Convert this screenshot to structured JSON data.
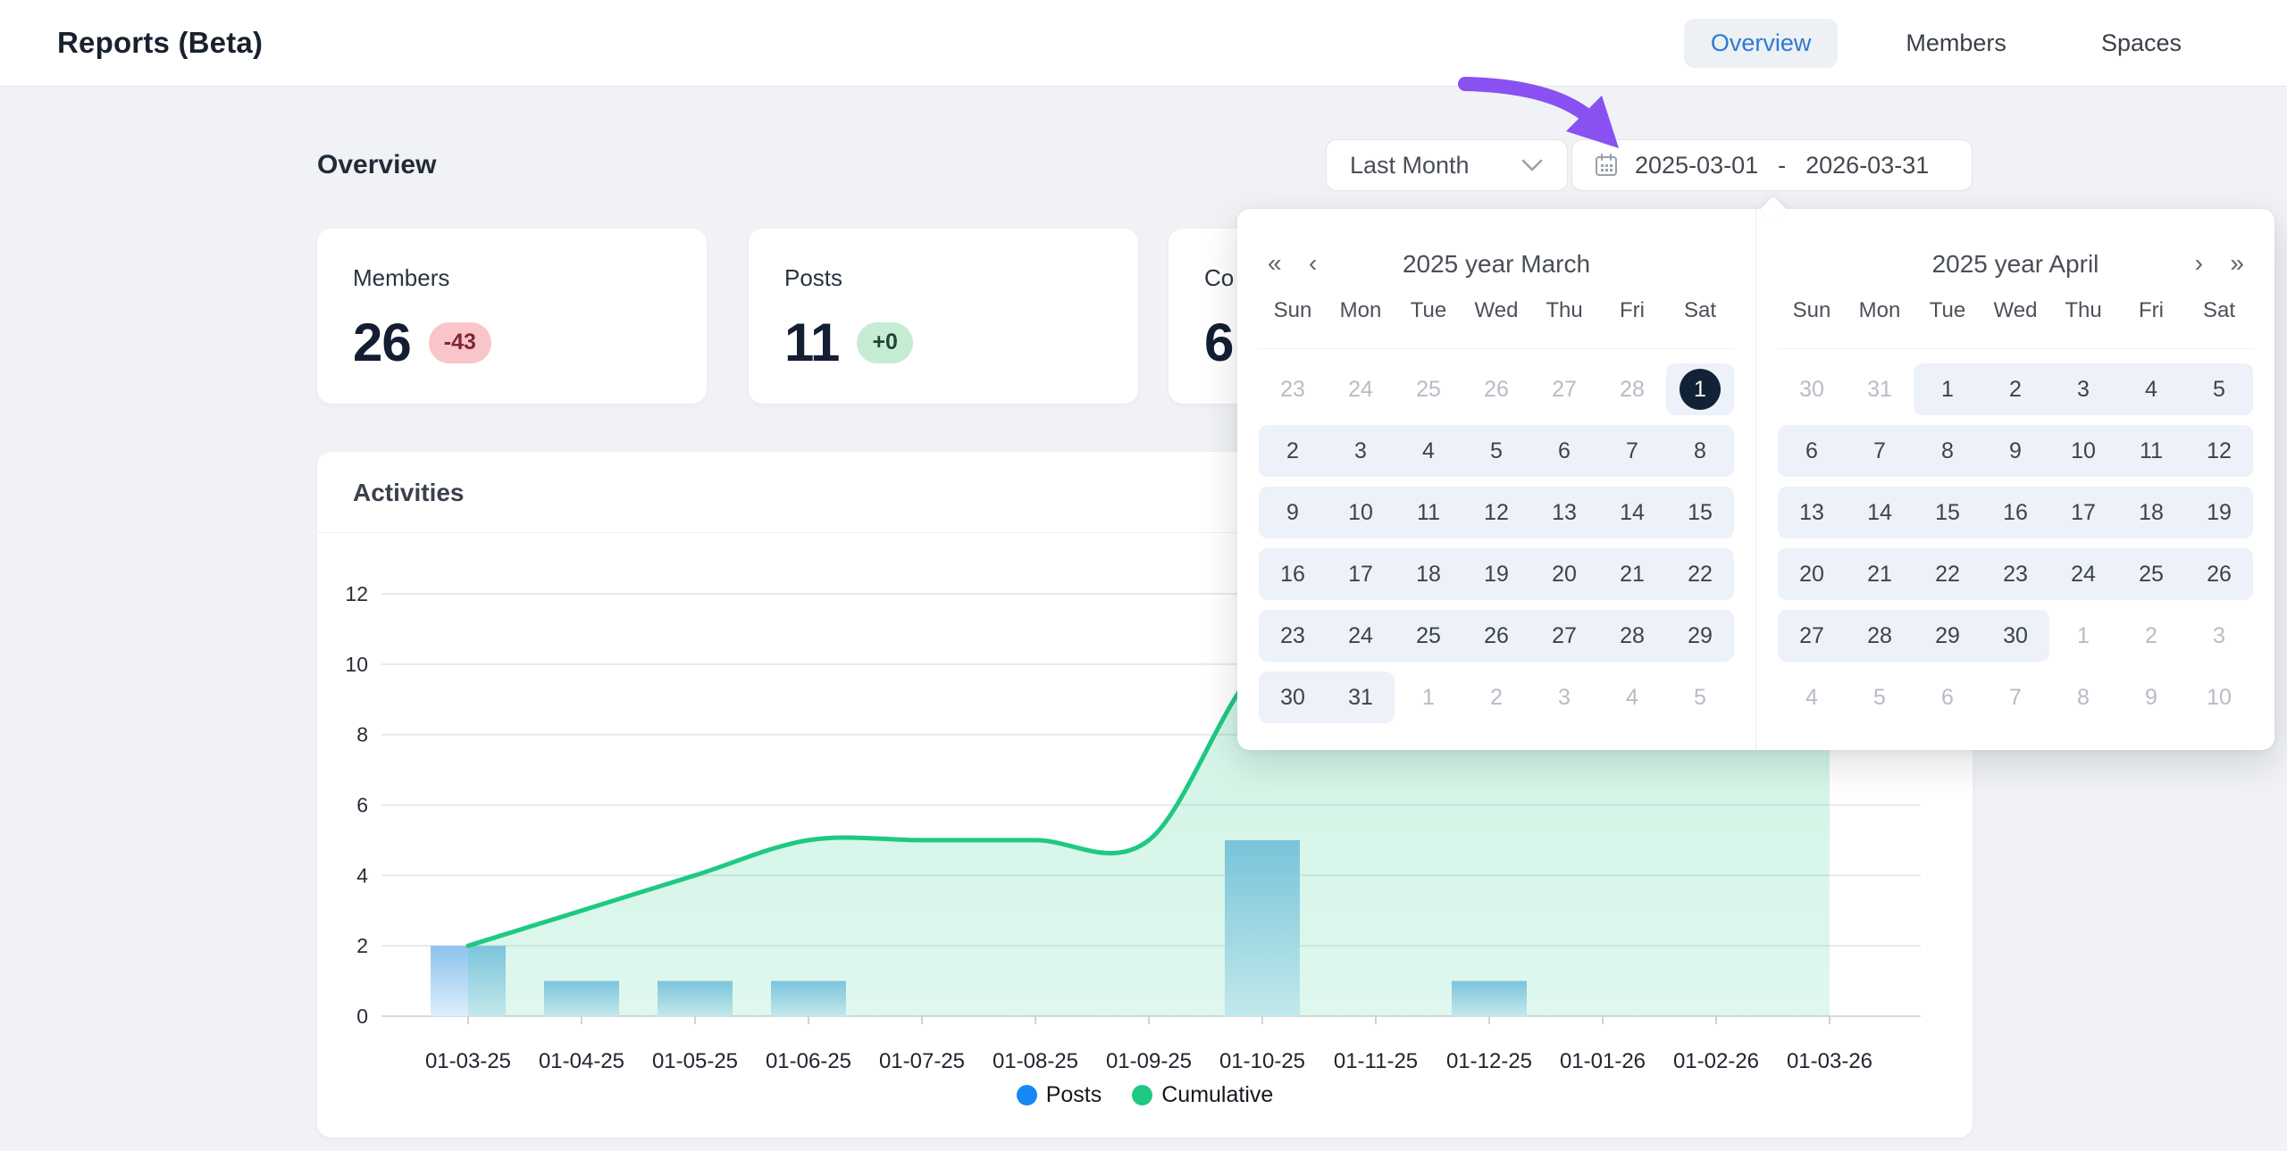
{
  "header": {
    "title": "Reports (Beta)",
    "tabs": [
      {
        "label": "Overview",
        "active": true
      },
      {
        "label": "Members",
        "active": false
      },
      {
        "label": "Spaces",
        "active": false
      }
    ]
  },
  "main": {
    "section_title": "Overview"
  },
  "toolbar": {
    "preset": "Last Month",
    "range_start": "2025-03-01",
    "range_separator": "-",
    "range_end": "2026-03-31",
    "calendar_icon": "calendar",
    "chevron_icon": "chevron-down",
    "annotation_arrow_color": "#8950f2"
  },
  "stat_cards": [
    {
      "label": "Members",
      "value": "26",
      "badge": "-43",
      "badge_type": "negative"
    },
    {
      "label": "Posts",
      "value": "11",
      "badge": "+0",
      "badge_type": "positive"
    },
    {
      "label": "Co",
      "value": "6",
      "badge": "",
      "badge_type": "none"
    }
  ],
  "calendar": {
    "day_names": [
      "Sun",
      "Mon",
      "Tue",
      "Wed",
      "Thu",
      "Fri",
      "Sat"
    ],
    "panels": [
      {
        "title": "2025 year March",
        "nav_left": [
          "«",
          "‹"
        ],
        "nav_right": [],
        "weeks": [
          [
            {
              "d": "23",
              "s": "muted"
            },
            {
              "d": "24",
              "s": "muted"
            },
            {
              "d": "25",
              "s": "muted"
            },
            {
              "d": "26",
              "s": "muted"
            },
            {
              "d": "27",
              "s": "muted"
            },
            {
              "d": "28",
              "s": "muted"
            },
            {
              "d": "1",
              "s": "selected"
            }
          ],
          [
            {
              "d": "2",
              "s": "range"
            },
            {
              "d": "3",
              "s": "range"
            },
            {
              "d": "4",
              "s": "range"
            },
            {
              "d": "5",
              "s": "range"
            },
            {
              "d": "6",
              "s": "range"
            },
            {
              "d": "7",
              "s": "range"
            },
            {
              "d": "8",
              "s": "range"
            }
          ],
          [
            {
              "d": "9",
              "s": "range"
            },
            {
              "d": "10",
              "s": "range"
            },
            {
              "d": "11",
              "s": "range"
            },
            {
              "d": "12",
              "s": "range"
            },
            {
              "d": "13",
              "s": "range"
            },
            {
              "d": "14",
              "s": "range"
            },
            {
              "d": "15",
              "s": "range"
            }
          ],
          [
            {
              "d": "16",
              "s": "range"
            },
            {
              "d": "17",
              "s": "range"
            },
            {
              "d": "18",
              "s": "range"
            },
            {
              "d": "19",
              "s": "range"
            },
            {
              "d": "20",
              "s": "range"
            },
            {
              "d": "21",
              "s": "range"
            },
            {
              "d": "22",
              "s": "range"
            }
          ],
          [
            {
              "d": "23",
              "s": "range"
            },
            {
              "d": "24",
              "s": "range"
            },
            {
              "d": "25",
              "s": "range"
            },
            {
              "d": "26",
              "s": "range"
            },
            {
              "d": "27",
              "s": "range"
            },
            {
              "d": "28",
              "s": "range"
            },
            {
              "d": "29",
              "s": "range"
            }
          ],
          [
            {
              "d": "30",
              "s": "range"
            },
            {
              "d": "31",
              "s": "range"
            },
            {
              "d": "1",
              "s": "muted"
            },
            {
              "d": "2",
              "s": "muted"
            },
            {
              "d": "3",
              "s": "muted"
            },
            {
              "d": "4",
              "s": "muted"
            },
            {
              "d": "5",
              "s": "muted"
            }
          ]
        ]
      },
      {
        "title": "2025 year April",
        "nav_left": [],
        "nav_right": [
          "›",
          "»"
        ],
        "weeks": [
          [
            {
              "d": "30",
              "s": "muted"
            },
            {
              "d": "31",
              "s": "muted"
            },
            {
              "d": "1",
              "s": "range"
            },
            {
              "d": "2",
              "s": "range"
            },
            {
              "d": "3",
              "s": "range"
            },
            {
              "d": "4",
              "s": "range"
            },
            {
              "d": "5",
              "s": "range"
            }
          ],
          [
            {
              "d": "6",
              "s": "range"
            },
            {
              "d": "7",
              "s": "range"
            },
            {
              "d": "8",
              "s": "range"
            },
            {
              "d": "9",
              "s": "range"
            },
            {
              "d": "10",
              "s": "range"
            },
            {
              "d": "11",
              "s": "range"
            },
            {
              "d": "12",
              "s": "range"
            }
          ],
          [
            {
              "d": "13",
              "s": "range"
            },
            {
              "d": "14",
              "s": "range"
            },
            {
              "d": "15",
              "s": "range"
            },
            {
              "d": "16",
              "s": "range"
            },
            {
              "d": "17",
              "s": "range"
            },
            {
              "d": "18",
              "s": "range"
            },
            {
              "d": "19",
              "s": "range"
            }
          ],
          [
            {
              "d": "20",
              "s": "range"
            },
            {
              "d": "21",
              "s": "range"
            },
            {
              "d": "22",
              "s": "range"
            },
            {
              "d": "23",
              "s": "range"
            },
            {
              "d": "24",
              "s": "range"
            },
            {
              "d": "25",
              "s": "range"
            },
            {
              "d": "26",
              "s": "range"
            }
          ],
          [
            {
              "d": "27",
              "s": "range"
            },
            {
              "d": "28",
              "s": "range"
            },
            {
              "d": "29",
              "s": "range"
            },
            {
              "d": "30",
              "s": "range"
            },
            {
              "d": "1",
              "s": "muted"
            },
            {
              "d": "2",
              "s": "muted"
            },
            {
              "d": "3",
              "s": "muted"
            }
          ],
          [
            {
              "d": "4",
              "s": "muted"
            },
            {
              "d": "5",
              "s": "muted"
            },
            {
              "d": "6",
              "s": "muted"
            },
            {
              "d": "7",
              "s": "muted"
            },
            {
              "d": "8",
              "s": "muted"
            },
            {
              "d": "9",
              "s": "muted"
            },
            {
              "d": "10",
              "s": "muted"
            }
          ]
        ]
      }
    ]
  },
  "chart_data": {
    "type": "bar",
    "title": "Activities",
    "categories": [
      "01-03-25",
      "01-04-25",
      "01-05-25",
      "01-06-25",
      "01-07-25",
      "01-08-25",
      "01-09-25",
      "01-10-25",
      "01-11-25",
      "01-12-25",
      "01-01-26",
      "01-02-26",
      "01-03-26"
    ],
    "series": [
      {
        "name": "Posts",
        "type": "bar",
        "values": [
          2,
          1,
          1,
          1,
          0,
          0,
          0,
          5,
          0,
          1,
          0,
          0,
          0
        ],
        "color_top": "#8cc3ed",
        "color_bottom": "#ddeefb"
      },
      {
        "name": "Cumulative",
        "type": "line",
        "values": [
          2,
          3,
          4,
          5,
          5,
          5,
          5,
          10,
          10,
          11,
          11,
          11,
          11
        ],
        "color": "#1ec981",
        "area": true
      }
    ],
    "yticks": [
      0,
      2,
      4,
      6,
      8,
      10,
      12
    ],
    "ylim": [
      0,
      12
    ],
    "grid": true,
    "legend_position": "bottom"
  },
  "legend": [
    {
      "label": "Posts",
      "color": "#1787f4"
    },
    {
      "label": "Cumulative",
      "color": "#1ec981"
    }
  ]
}
